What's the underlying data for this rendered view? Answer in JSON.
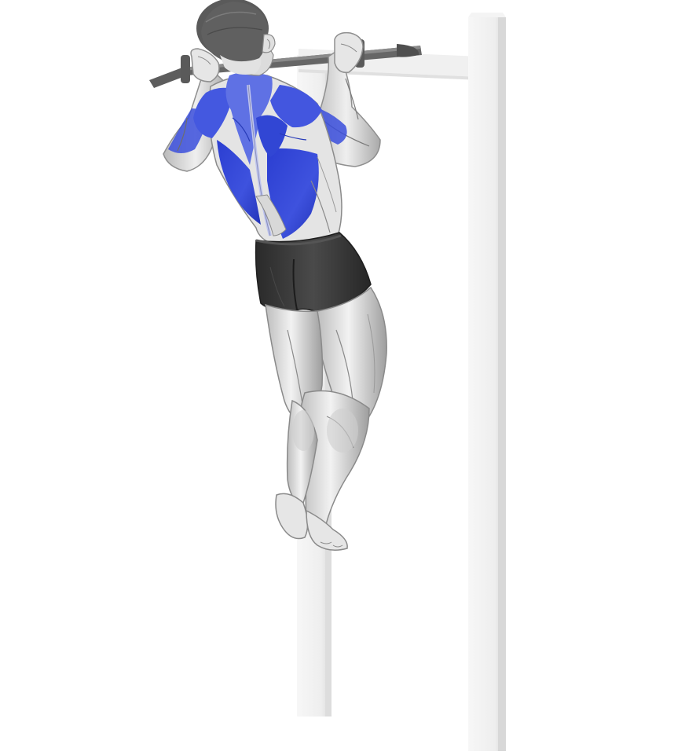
{
  "illustration": {
    "subject": "pull-up-exercise",
    "colors": {
      "background": "#ffffff",
      "highlighted_muscle": "#3347d6",
      "highlighted_muscle_light": "#6f80e6",
      "skin": "#e9e9e9",
      "skin_shadow": "#9c9c9c",
      "muscle_line": "#7a7a7a",
      "hair": "#555555",
      "shorts": "#333333",
      "shorts_highlight": "#555555",
      "bar": "#5a5a5a",
      "frame": "#f1f1f1",
      "frame_shadow": "#dcdcdc"
    }
  }
}
